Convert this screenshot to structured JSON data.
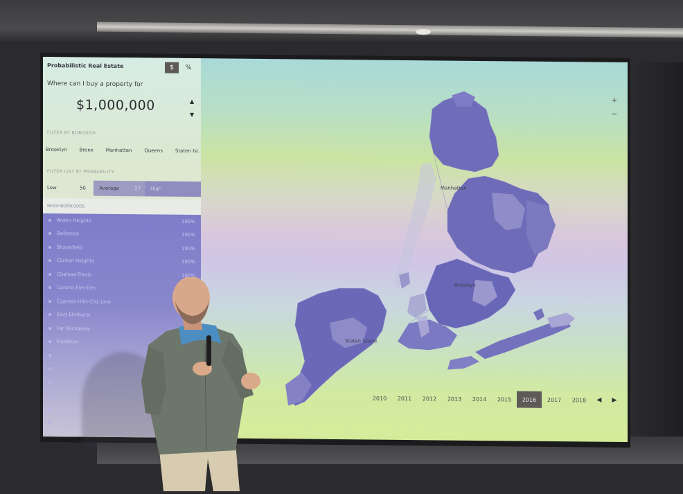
{
  "app": {
    "title": "Probabilistic Real Estate",
    "unit_dollar": "$",
    "unit_percent": "%"
  },
  "search": {
    "question": "Where can I buy a property for",
    "price": "$1,000,000"
  },
  "filter_borough": {
    "label": "FILTER BY BOROUGH",
    "boroughs": [
      "Brooklyn",
      "Bronx",
      "Manhattan",
      "Queens",
      "Staten Isl."
    ]
  },
  "filter_probability": {
    "label": "FILTER LIST BY PROBABILITY",
    "low": "Low",
    "fifty": "50",
    "average": "Average",
    "average_value": "27",
    "high": "High"
  },
  "neighborhoods": {
    "header": "NEIGHBORHOODS",
    "items": [
      {
        "name": "Arden Heights",
        "pct": "100%"
      },
      {
        "name": "Bellerose",
        "pct": "100%"
      },
      {
        "name": "Bloomfield",
        "pct": "100%"
      },
      {
        "name": "Clinton Heights",
        "pct": "100%"
      },
      {
        "name": "Chelsea-Travis",
        "pct": "100%"
      },
      {
        "name": "Corona Elm-Elm",
        "pct": ""
      },
      {
        "name": "Cypress Hills-City Line",
        "pct": ""
      },
      {
        "name": "East Elmhurst",
        "pct": ""
      },
      {
        "name": "Far Rockaway",
        "pct": ""
      },
      {
        "name": "Fieldston",
        "pct": ""
      },
      {
        "name": "",
        "pct": ""
      },
      {
        "name": "",
        "pct": ""
      },
      {
        "name": "",
        "pct": ""
      },
      {
        "name": "",
        "pct": ""
      },
      {
        "name": "",
        "pct": ""
      },
      {
        "name": "",
        "pct": ""
      }
    ]
  },
  "map": {
    "label_manhattan": "Manhattan",
    "label_brooklyn": "Brooklyn",
    "label_staten": "Staten Island",
    "zoom_in": "+",
    "zoom_out": "−"
  },
  "timeline": {
    "years": [
      "2010",
      "2011",
      "2012",
      "2013",
      "2014",
      "2015",
      "2016",
      "2017",
      "2018"
    ],
    "selected": "2016",
    "prev": "◀",
    "next": "▶"
  },
  "colors": {
    "accent": "#5e5a58",
    "map_dark": "#6a69b8",
    "map_light": "#a4a2d2"
  }
}
